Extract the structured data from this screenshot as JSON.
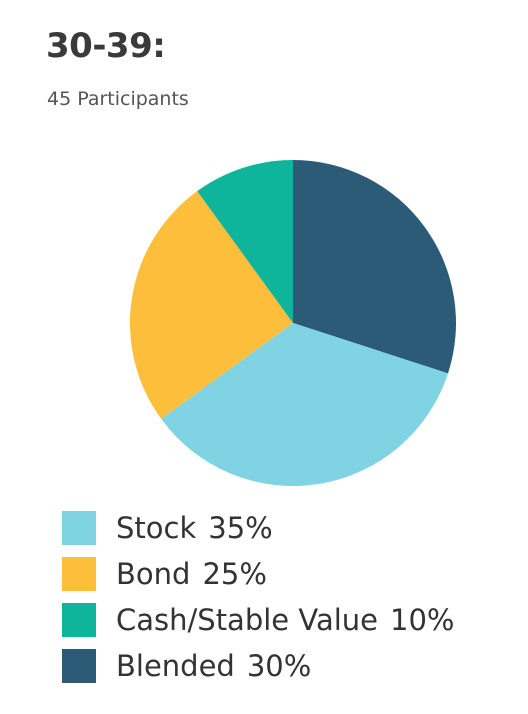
{
  "header": {
    "title": "30-39:",
    "subtitle": "45 Participants"
  },
  "chart_data": {
    "type": "pie",
    "title": "30-39:",
    "subtitle": "45 Participants",
    "categories": [
      "Stock",
      "Bond",
      "Cash/Stable Value",
      "Blended"
    ],
    "values": [
      35,
      25,
      10,
      30
    ],
    "value_labels": [
      "35%",
      "25%",
      "10%",
      "30%"
    ],
    "colors": [
      "#7fd3e3",
      "#fdbf3b",
      "#0fb59a",
      "#2b5b77"
    ],
    "legend_position": "bottom-left",
    "start_category": "Blended",
    "direction": "clockwise-from-top"
  }
}
